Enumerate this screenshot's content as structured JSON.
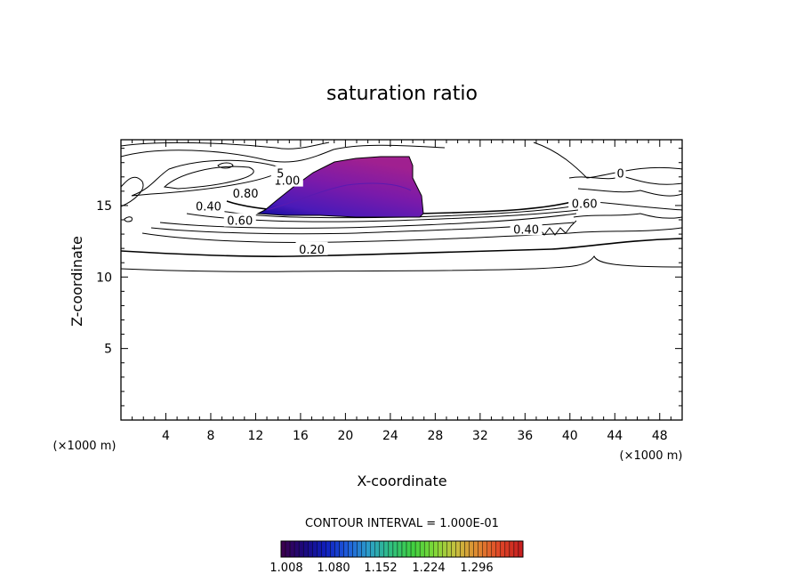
{
  "chart_data": {
    "type": "contour",
    "title": "saturation ratio",
    "xlabel": "X-coordinate",
    "ylabel": "Z-coordinate",
    "x_unit": "(×1000 m)",
    "z_unit": "(×1000 m)",
    "xlim": [
      0,
      50
    ],
    "ylim": [
      0,
      19.6
    ],
    "x_ticks": [
      4,
      8,
      12,
      16,
      20,
      24,
      28,
      32,
      36,
      40,
      44,
      48
    ],
    "y_ticks": [
      5,
      10,
      15
    ],
    "contour_interval_text": "CONTOUR INTERVAL = 1.000E-01",
    "contour_labels": [
      {
        "text": "0.20",
        "x": 17,
        "z": 11.9
      },
      {
        "text": "0.60",
        "x": 10.6,
        "z": 13.9
      },
      {
        "text": "0.40",
        "x": 7.8,
        "z": 14.9
      },
      {
        "text": "0.80",
        "x": 11.1,
        "z": 15.8
      },
      {
        "text": "1.00",
        "x": 14.8,
        "z": 16.7
      },
      {
        "text": "5",
        "x": 14.2,
        "z": 17.2
      },
      {
        "text": "0.40",
        "x": 36.1,
        "z": 13.3
      },
      {
        "text": "0.60",
        "x": 41.3,
        "z": 15.1
      },
      {
        "text": "0",
        "x": 44.5,
        "z": 17.2
      }
    ],
    "supersaturated_region": {
      "x_range": [
        12,
        27
      ],
      "z_range": [
        14.5,
        18.8
      ],
      "fill_min": 1.008,
      "fill_max": 1.32
    },
    "colorbar": {
      "ticks": [
        "1.008",
        "1.080",
        "1.152",
        "1.224",
        "1.296"
      ],
      "colors": [
        "#3a0050",
        "#1a0a80",
        "#1020c0",
        "#1f5fdc",
        "#2ca0c8",
        "#30c080",
        "#40d040",
        "#80d838",
        "#c8c040",
        "#e08830",
        "#e04828",
        "#c82020"
      ]
    }
  }
}
